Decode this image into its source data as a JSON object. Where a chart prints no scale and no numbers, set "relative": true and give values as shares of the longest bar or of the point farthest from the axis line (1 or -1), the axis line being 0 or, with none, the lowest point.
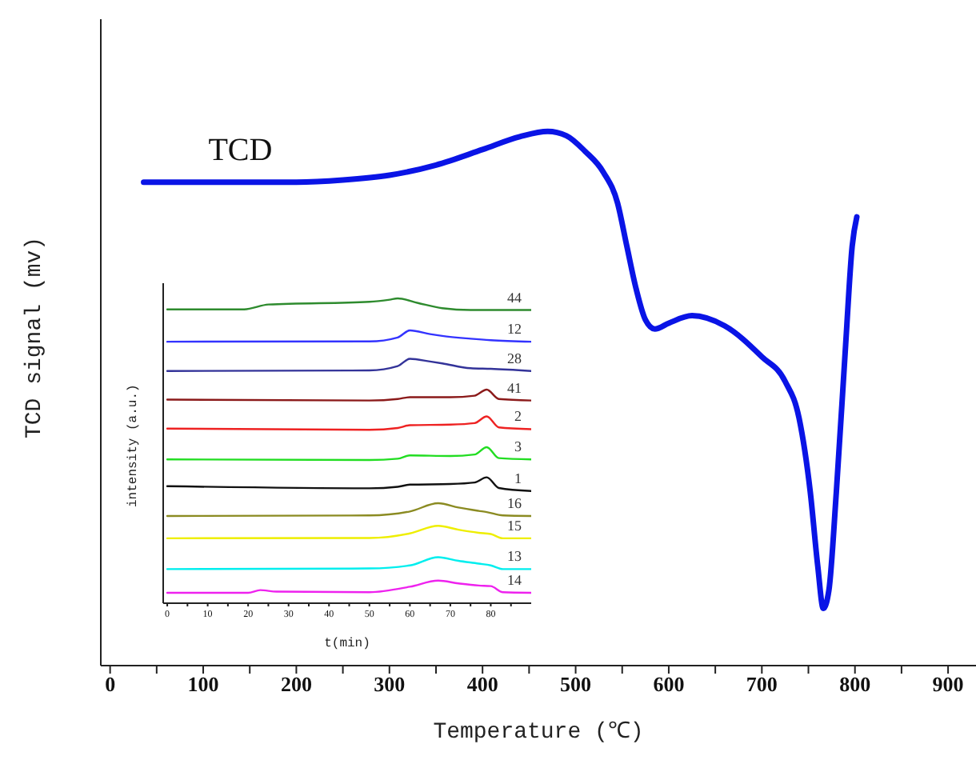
{
  "chart_data": [
    {
      "type": "line",
      "xlabel": "Temperature (℃)",
      "ylabel": "TCD signal (mv)",
      "relative": true,
      "xlim": [
        -10,
        930
      ],
      "xticks": [
        0,
        {
          "value": 50,
          "label": null
        },
        100,
        {
          "value": 150,
          "label": null
        },
        200,
        {
          "value": 250,
          "label": null
        },
        300,
        {
          "value": 350,
          "label": null
        },
        400,
        {
          "value": 450,
          "label": null
        },
        500,
        {
          "value": 550,
          "label": null
        },
        600,
        {
          "value": 650,
          "label": null
        },
        700,
        {
          "value": 750,
          "label": null
        },
        800,
        {
          "value": 850,
          "label": null
        },
        900
      ],
      "grid": false,
      "legend": false,
      "marker": "none",
      "line_style": "solid",
      "series": [
        {
          "name": "TCD",
          "color": "#0a14e6",
          "x": [
            36,
            200,
            250,
            300,
            350,
            400,
            440,
            470,
            490,
            510,
            530,
            545,
            555,
            565,
            575,
            585,
            600,
            625,
            660,
            700,
            725,
            740,
            752,
            760,
            766,
            772,
            780,
            790,
            797,
            802
          ],
          "values": [
            0.905,
            0.905,
            0.909,
            0.918,
            0.937,
            0.966,
            0.99,
            1.0,
            0.992,
            0.963,
            0.923,
            0.866,
            0.785,
            0.705,
            0.647,
            0.63,
            0.641,
            0.655,
            0.636,
            0.578,
            0.532,
            0.463,
            0.325,
            0.187,
            0.107,
            0.141,
            0.325,
            0.601,
            0.785,
            0.84
          ]
        }
      ]
    },
    {
      "type": "line",
      "xlabel": "t(min)",
      "ylabel": "intensity (a.u.)",
      "relative": true,
      "xlim": [
        -1,
        90
      ],
      "xticks": [
        0,
        {
          "value": 5,
          "label": null
        },
        10,
        {
          "value": 15,
          "label": null
        },
        20,
        {
          "value": 25,
          "label": null
        },
        30,
        {
          "value": 35,
          "label": null
        },
        40,
        {
          "value": 45,
          "label": null
        },
        50,
        {
          "value": 55,
          "label": null
        },
        60,
        {
          "value": 65,
          "label": null
        },
        70,
        {
          "value": 75,
          "label": null
        },
        80,
        {
          "value": 85,
          "label": null
        }
      ],
      "grid": false,
      "legend": false,
      "marker": "none",
      "line_style": "solid",
      "series": [
        {
          "name": "44",
          "color": "#2e8b2e",
          "x": [
            0,
            19,
            25,
            50,
            55,
            57,
            62,
            68,
            75,
            90
          ],
          "values": [
            0.964,
            0.964,
            0.98,
            0.989,
            0.996,
            1.0,
            0.985,
            0.968,
            0.962,
            0.962
          ]
        },
        {
          "name": "12",
          "color": "#3333ff",
          "x": [
            0,
            50,
            57,
            60,
            65,
            68,
            75,
            80,
            90
          ],
          "values": [
            0.858,
            0.859,
            0.872,
            0.895,
            0.883,
            0.877,
            0.868,
            0.863,
            0.858
          ]
        },
        {
          "name": "28",
          "color": "#333399",
          "x": [
            0,
            50,
            57,
            60,
            65,
            68,
            75,
            80,
            90
          ],
          "values": [
            0.762,
            0.764,
            0.778,
            0.802,
            0.793,
            0.787,
            0.771,
            0.769,
            0.762
          ]
        },
        {
          "name": "41",
          "color": "#8b1a1a",
          "x": [
            0,
            50,
            57,
            60,
            70,
            76,
            79,
            82,
            90
          ],
          "values": [
            0.668,
            0.665,
            0.67,
            0.676,
            0.676,
            0.681,
            0.701,
            0.67,
            0.665
          ]
        },
        {
          "name": "2",
          "color": "#ee2222",
          "x": [
            0,
            50,
            57,
            60,
            70,
            76,
            79,
            82,
            90
          ],
          "values": [
            0.573,
            0.569,
            0.575,
            0.584,
            0.586,
            0.591,
            0.613,
            0.577,
            0.571
          ]
        },
        {
          "name": "3",
          "color": "#22dd22",
          "x": [
            0,
            50,
            57,
            60,
            70,
            76,
            79,
            82,
            90
          ],
          "values": [
            0.472,
            0.47,
            0.474,
            0.485,
            0.483,
            0.488,
            0.512,
            0.476,
            0.472
          ]
        },
        {
          "name": "1",
          "color": "#111111",
          "x": [
            0,
            50,
            57,
            60,
            70,
            76,
            79,
            82,
            90
          ],
          "values": [
            0.384,
            0.377,
            0.382,
            0.389,
            0.391,
            0.396,
            0.413,
            0.378,
            0.368
          ]
        },
        {
          "name": "16",
          "color": "#8b8b22",
          "x": [
            0,
            50,
            60,
            67,
            72,
            77,
            79,
            83,
            90
          ],
          "values": [
            0.286,
            0.288,
            0.301,
            0.328,
            0.314,
            0.303,
            0.299,
            0.288,
            0.286
          ]
        },
        {
          "name": "15",
          "color": "#eeee00",
          "x": [
            0,
            50,
            60,
            67,
            72,
            77,
            80,
            83,
            90
          ],
          "values": [
            0.213,
            0.214,
            0.229,
            0.254,
            0.241,
            0.231,
            0.227,
            0.213,
            0.213
          ]
        },
        {
          "name": "13",
          "color": "#00eeee",
          "x": [
            0,
            50,
            60,
            67,
            72,
            77,
            80,
            83,
            90
          ],
          "values": [
            0.112,
            0.114,
            0.124,
            0.151,
            0.139,
            0.13,
            0.124,
            0.112,
            0.112
          ]
        },
        {
          "name": "14",
          "color": "#ee22ee",
          "x": [
            0,
            20,
            23,
            27,
            50,
            60,
            67,
            72,
            77,
            80,
            83,
            90
          ],
          "values": [
            0.034,
            0.034,
            0.043,
            0.038,
            0.036,
            0.054,
            0.074,
            0.065,
            0.058,
            0.056,
            0.036,
            0.034
          ]
        }
      ]
    }
  ]
}
